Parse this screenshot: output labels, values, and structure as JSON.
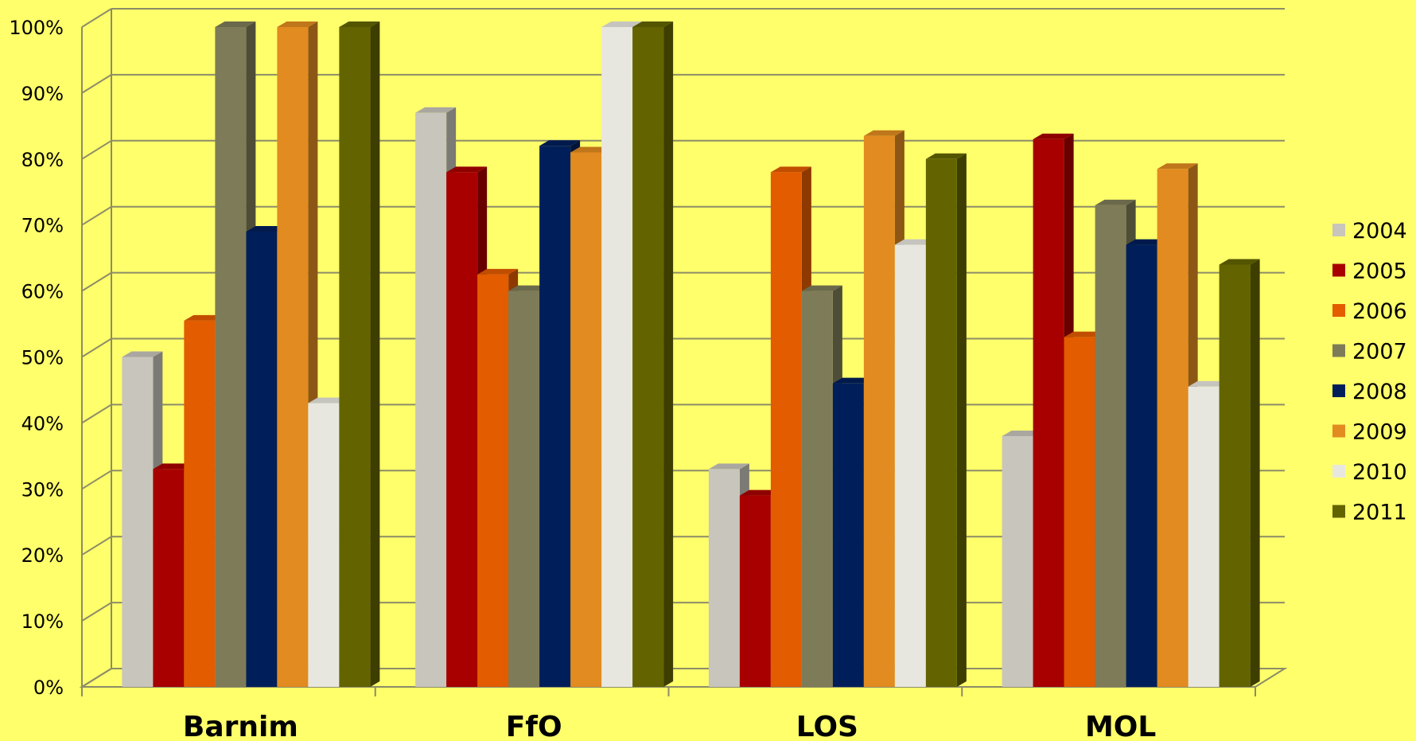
{
  "chart_data": {
    "type": "bar",
    "style": "3d-clustered-column",
    "categories": [
      "Barnim",
      "FfO",
      "LOS",
      "MOL"
    ],
    "ylim": [
      0,
      100
    ],
    "yticks": [
      "0%",
      "10%",
      "20%",
      "30%",
      "40%",
      "50%",
      "60%",
      "70%",
      "80%",
      "90%",
      "100%"
    ],
    "grid": true,
    "legend_position": "right",
    "series": [
      {
        "name": "2004",
        "color": "#c8c5bc",
        "values": [
          50,
          87,
          33,
          38
        ]
      },
      {
        "name": "2005",
        "color": "#a80000",
        "values": [
          33,
          78,
          29,
          83
        ]
      },
      {
        "name": "2006",
        "color": "#e35c00",
        "values": [
          55.5,
          62.5,
          78,
          53
        ]
      },
      {
        "name": "2007",
        "color": "#7e7c58",
        "values": [
          100,
          60,
          60,
          73
        ]
      },
      {
        "name": "2008",
        "color": "#001f5a",
        "values": [
          69,
          82,
          46,
          67
        ]
      },
      {
        "name": "2009",
        "color": "#e28b20",
        "values": [
          100,
          81,
          83.5,
          78.5
        ]
      },
      {
        "name": "2010",
        "color": "#e8e7df",
        "values": [
          43,
          100,
          67,
          45.5
        ]
      },
      {
        "name": "2011",
        "color": "#636400",
        "values": [
          100,
          100,
          80,
          64
        ]
      }
    ]
  }
}
